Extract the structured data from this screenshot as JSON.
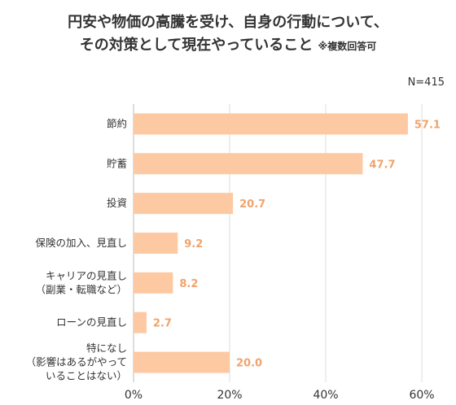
{
  "title": {
    "line1": "円安や物価の高騰を受け、自身の行動について、",
    "line2": "その対策として現在やっていること",
    "note": "※複数回答可"
  },
  "sample_size": "N=415",
  "colors": {
    "bar": "#fdc9a3",
    "value_text": "#f0a36b",
    "grid": "#dddddd",
    "axis": "#bbbbbb"
  },
  "chart_data": {
    "type": "bar",
    "orientation": "horizontal",
    "categories": [
      [
        "節約"
      ],
      [
        "貯蓄"
      ],
      [
        "投資"
      ],
      [
        "保険の加入、見直し"
      ],
      [
        "キャリアの見直し",
        "（副業・転職など）"
      ],
      [
        "ローンの見直し"
      ],
      [
        "特になし",
        "（影響はあるがやって",
        "いることはない）"
      ]
    ],
    "values": [
      57.1,
      47.7,
      20.7,
      9.2,
      8.2,
      2.7,
      20.0
    ],
    "value_labels": [
      "57.1",
      "47.7",
      "20.7",
      "9.2",
      "8.2",
      "2.7",
      "20.0"
    ],
    "xlim": [
      0,
      60
    ],
    "ticks": [
      0,
      20,
      40,
      60
    ],
    "tick_labels": [
      "0%",
      "20%",
      "40%",
      "60%"
    ],
    "grid": true,
    "unit": "%"
  }
}
